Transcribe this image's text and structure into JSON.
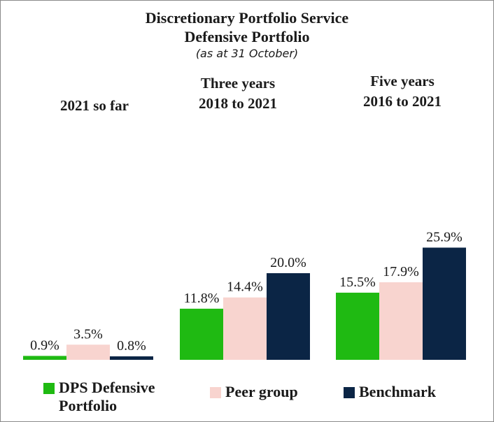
{
  "chart_data": {
    "type": "bar",
    "title": "Discretionary Portfolio Service",
    "subtitle_line1": "Defensive Portfolio",
    "subtitle_line2": "(as at 31 October)",
    "categories": [
      {
        "line1": "2021 so far",
        "line2": ""
      },
      {
        "line1": "Three years",
        "line2": "2018 to 2021"
      },
      {
        "line1": "Five years",
        "line2": "2016 to 2021"
      }
    ],
    "series": [
      {
        "name": "DPS Defensive Portfolio",
        "color": "#1fba12",
        "values": [
          0.9,
          11.8,
          15.5
        ],
        "labels": [
          "0.9%",
          "11.8%",
          "15.5%"
        ]
      },
      {
        "name": "Peer group",
        "color": "#f8d4cf",
        "values": [
          3.5,
          14.4,
          17.9
        ],
        "labels": [
          "3.5%",
          "14.4%",
          "17.9%"
        ]
      },
      {
        "name": "Benchmark",
        "color": "#0b2545",
        "values": [
          0.8,
          20.0,
          25.9
        ],
        "labels": [
          "0.8%",
          "20.0%",
          "25.9%"
        ]
      }
    ],
    "unit": "%",
    "ylim": [
      0,
      30
    ],
    "grid": false,
    "legend_position": "bottom"
  },
  "legend": {
    "items": [
      {
        "label": "DPS Defensive\nPortfolio"
      },
      {
        "label": "Peer group"
      },
      {
        "label": "Benchmark"
      }
    ]
  }
}
